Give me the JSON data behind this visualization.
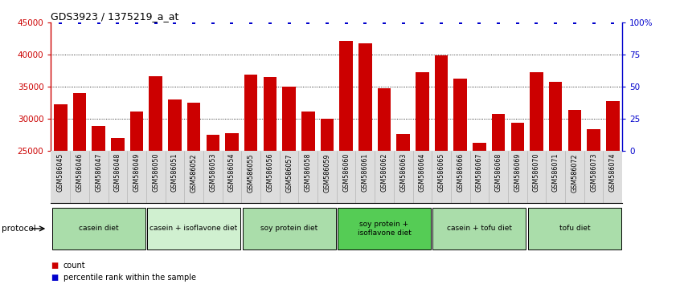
{
  "title": "GDS3923 / 1375219_a_at",
  "categories": [
    "GSM586045",
    "GSM586046",
    "GSM586047",
    "GSM586048",
    "GSM586049",
    "GSM586050",
    "GSM586051",
    "GSM586052",
    "GSM586053",
    "GSM586054",
    "GSM586055",
    "GSM586056",
    "GSM586057",
    "GSM586058",
    "GSM586059",
    "GSM586060",
    "GSM586061",
    "GSM586062",
    "GSM586063",
    "GSM586064",
    "GSM586065",
    "GSM586066",
    "GSM586067",
    "GSM586068",
    "GSM586069",
    "GSM586070",
    "GSM586071",
    "GSM586072",
    "GSM586073",
    "GSM586074"
  ],
  "values": [
    32200,
    34000,
    28900,
    27000,
    31100,
    36600,
    33000,
    32500,
    27500,
    27700,
    36900,
    36500,
    35000,
    31100,
    30000,
    42100,
    41800,
    34700,
    27600,
    37200,
    39900,
    36300,
    26200,
    30700,
    29300,
    37200,
    35700,
    31400,
    28300,
    32700
  ],
  "bar_color": "#cc0000",
  "percentile_color": "#0000cc",
  "ymin": 25000,
  "ymax": 45000,
  "yticks": [
    25000,
    30000,
    35000,
    40000,
    45000
  ],
  "right_yticks": [
    0,
    25,
    50,
    75,
    100
  ],
  "groups": [
    {
      "label": "casein diet",
      "start": 0,
      "end": 4,
      "color": "#aaddaa"
    },
    {
      "label": "casein + isoflavone diet",
      "start": 5,
      "end": 9,
      "color": "#d0f0d0"
    },
    {
      "label": "soy protein diet",
      "start": 10,
      "end": 14,
      "color": "#aaddaa"
    },
    {
      "label": "soy protein +\nisoflavone diet",
      "start": 15,
      "end": 19,
      "color": "#55cc55"
    },
    {
      "label": "casein + tofu diet",
      "start": 20,
      "end": 24,
      "color": "#aaddaa"
    },
    {
      "label": "tofu diet",
      "start": 25,
      "end": 29,
      "color": "#aaddaa"
    }
  ],
  "bg_color": "#ffffff",
  "label_bg_color": "#dddddd",
  "protocol_label": "protocol"
}
